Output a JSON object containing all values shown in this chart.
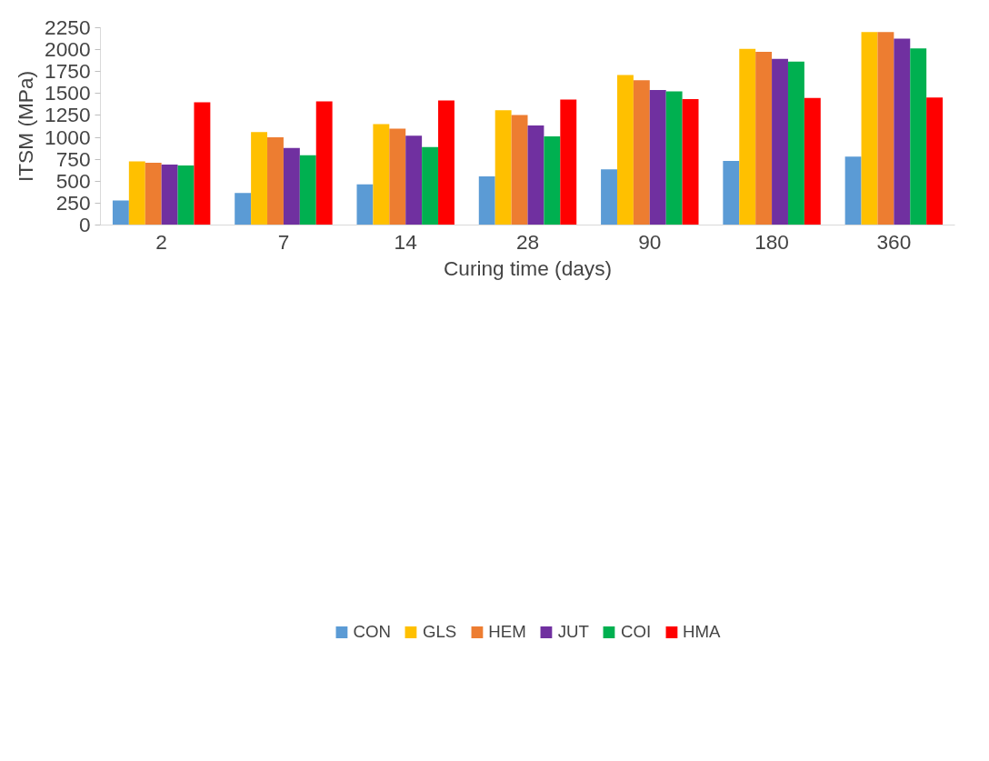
{
  "chart_data": {
    "type": "bar",
    "xlabel": "Curing time (days)",
    "ylabel": "ITSM (MPa)",
    "categories": [
      "2",
      "7",
      "14",
      "28",
      "90",
      "180",
      "360"
    ],
    "series": [
      {
        "name": "CON",
        "color": "#5b9bd5",
        "values": [
          280,
          365,
          465,
          555,
          635,
          730,
          780
        ]
      },
      {
        "name": "GLS",
        "color": "#ffc000",
        "values": [
          725,
          1060,
          1150,
          1310,
          1710,
          2010,
          2200
        ]
      },
      {
        "name": "HEM",
        "color": "#ed7d31",
        "values": [
          710,
          1000,
          1100,
          1255,
          1650,
          1975,
          2200
        ]
      },
      {
        "name": "JUT",
        "color": "#7030a0",
        "values": [
          690,
          880,
          1020,
          1135,
          1540,
          1895,
          2125
        ]
      },
      {
        "name": "COI",
        "color": "#00b050",
        "values": [
          680,
          795,
          890,
          1010,
          1525,
          1865,
          2015
        ]
      },
      {
        "name": "HMA",
        "color": "#ff0000",
        "values": [
          1400,
          1410,
          1420,
          1430,
          1435,
          1450,
          1455
        ]
      }
    ],
    "ylim": [
      0,
      2250
    ],
    "yticks": [
      0,
      250,
      500,
      750,
      1000,
      1250,
      1500,
      1750,
      2000,
      2250
    ],
    "grid": false,
    "legend": "bottom"
  }
}
